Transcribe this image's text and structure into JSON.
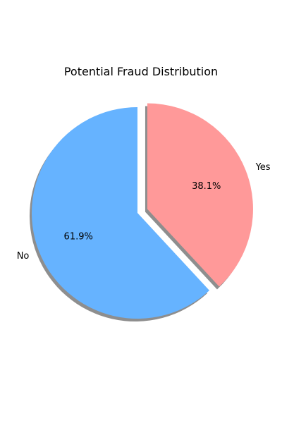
{
  "chart_data": {
    "type": "pie",
    "title": "Potential Fraud Distribution",
    "categories": [
      "No",
      "Yes"
    ],
    "values": [
      61.9,
      38.1
    ],
    "percent_labels": [
      "61.9%",
      "38.1%"
    ],
    "colors": [
      "#66b3ff",
      "#ff9999"
    ],
    "exploded": [
      "",
      "Yes"
    ],
    "shadow": true,
    "start_angle_deg": 90
  }
}
